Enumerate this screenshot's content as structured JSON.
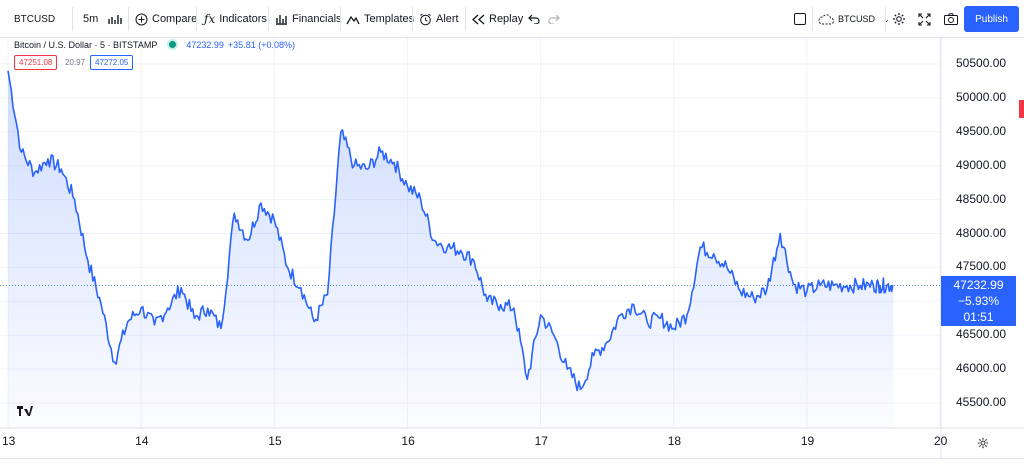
{
  "toolbar": {
    "symbol": "BTCUSD",
    "interval": "5m",
    "compare": "Compare",
    "indicators": "Indicators",
    "financials": "Financials",
    "templates": "Templates",
    "alert": "Alert",
    "replay": "Replay",
    "layout_name": "BTCUSD",
    "publish": "Publish"
  },
  "legend": {
    "title": "Bitcoin / U.S. Dollar · 5 · BITSTAMP",
    "price": "47232.99",
    "change": "+35.81 (+0.08%)",
    "sell": "47251.08",
    "spread": "20.97",
    "buy": "47272.05"
  },
  "price_tag": {
    "price": "47232.99",
    "change_pct": "−5.93%",
    "countdown": "01:51"
  },
  "y_axis_labels": [
    "50500.00",
    "50000.00",
    "49500.00",
    "49000.00",
    "48500.00",
    "48000.00",
    "47500.00",
    "47000.00",
    "46500.00",
    "46000.00",
    "45500.00"
  ],
  "x_axis_labels": [
    "13",
    "14",
    "15",
    "16",
    "17",
    "18",
    "19",
    "20"
  ],
  "colors": {
    "accent": "#2962ff",
    "line": "#2962ff",
    "red": "#f23645",
    "green": "#089981"
  },
  "chart_data": {
    "type": "area",
    "x": [
      13.0,
      13.1,
      13.2,
      13.3,
      13.4,
      13.5,
      13.6,
      13.7,
      13.8,
      13.9,
      14.0,
      14.1,
      14.2,
      14.3,
      14.4,
      14.5,
      14.6,
      14.7,
      14.8,
      14.9,
      15.0,
      15.1,
      15.2,
      15.3,
      15.4,
      15.5,
      15.6,
      15.7,
      15.8,
      15.9,
      16.0,
      16.1,
      16.2,
      16.3,
      16.4,
      16.5,
      16.6,
      16.7,
      16.8,
      16.9,
      17.0,
      17.1,
      17.2,
      17.3,
      17.4,
      17.5,
      17.6,
      17.7,
      17.8,
      17.9,
      18.0,
      18.1,
      18.2,
      18.3,
      18.4,
      18.5,
      18.6,
      18.7,
      18.8,
      18.9,
      19.0,
      19.1,
      19.2,
      19.3,
      19.4,
      19.5,
      19.55,
      19.6,
      19.65
    ],
    "y": [
      50400,
      49200,
      48900,
      49100,
      48950,
      48500,
      47600,
      46950,
      46100,
      46700,
      46900,
      46650,
      46900,
      47200,
      46750,
      46900,
      46600,
      48300,
      47900,
      48450,
      48200,
      47500,
      47200,
      46700,
      47100,
      49500,
      49000,
      48950,
      49200,
      49050,
      48700,
      48500,
      47900,
      47800,
      47750,
      47600,
      47000,
      46950,
      46900,
      45850,
      46800,
      46500,
      46000,
      45700,
      46200,
      46400,
      46800,
      46950,
      46700,
      46750,
      46600,
      46800,
      47800,
      47700,
      47500,
      47150,
      47050,
      47180,
      48000,
      47250,
      47150,
      47232.99,
      47232.99,
      47232.99,
      47232.99,
      47232.99,
      47232.99,
      47232.99,
      47232.99
    ],
    "title": "Bitcoin / U.S. Dollar · 5 · BITSTAMP",
    "xlabel": "",
    "ylabel": "",
    "ylim": [
      45300,
      50800
    ],
    "xlim": [
      13.0,
      20.0
    ],
    "grid": true,
    "legend": "top-left"
  }
}
